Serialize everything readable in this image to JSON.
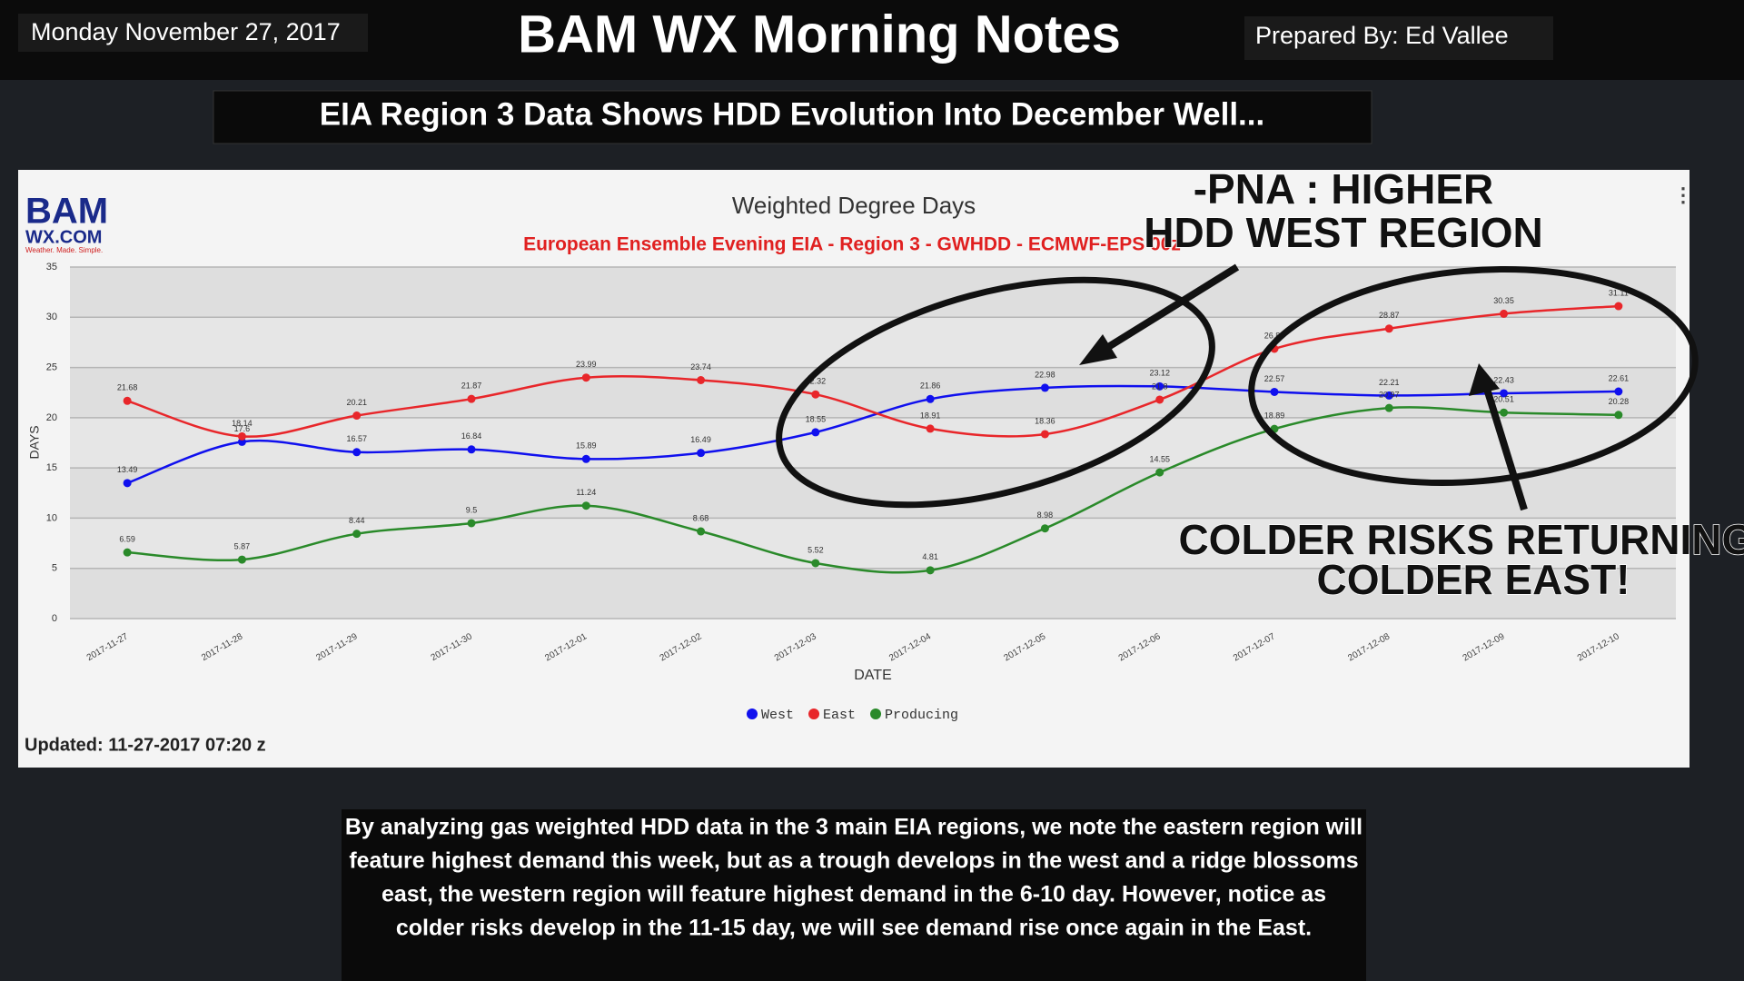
{
  "header": {
    "date": "Monday November 27, 2017",
    "title": "BAM WX Morning Notes",
    "author": "Prepared By: Ed Vallee"
  },
  "headline": "EIA Region 3 Data Shows HDD Evolution Into December Well...",
  "logo": {
    "brand": "BAM",
    "site": "WX.COM",
    "tagline": "Weather. Made. Simple."
  },
  "updated": "Updated: 11-27-2017 07:20 z",
  "body": [
    "By analyzing gas weighted HDD data in the 3 main EIA regions, we note the eastern region will",
    "feature highest demand this week, but as  a trough develops in the west and a ridge blossoms",
    "east, the western region will feature highest demand in the 6-10 day. However, notice as",
    "colder risks develop in the 11-15 day, we will see demand rise once again in the East."
  ],
  "chart_data": {
    "type": "line",
    "title": "Weighted Degree Days",
    "subtitle": "European Ensemble Evening EIA - Region 3 - GWHDD - ECMWF-EPS 00z",
    "x_label": "DATE",
    "y_label": "DAYS",
    "categories": [
      "2017-11-27",
      "2017-11-28",
      "2017-11-29",
      "2017-11-30",
      "2017-12-01",
      "2017-12-02",
      "2017-12-03",
      "2017-12-04",
      "2017-12-05",
      "2017-12-06",
      "2017-12-07",
      "2017-12-08",
      "2017-12-09",
      "2017-12-10"
    ],
    "series": [
      {
        "name": "West",
        "color": "#1010ee",
        "values": [
          13.49,
          17.6,
          16.57,
          16.84,
          15.89,
          16.49,
          18.55,
          21.86,
          22.98,
          23.12,
          22.57,
          22.21,
          22.43,
          22.61
        ]
      },
      {
        "name": "East",
        "color": "#e8262a",
        "values": [
          21.68,
          18.14,
          20.21,
          21.87,
          23.99,
          23.74,
          22.32,
          18.91,
          18.36,
          21.8,
          26.86,
          28.87,
          30.35,
          31.11
        ]
      },
      {
        "name": "Producing",
        "color": "#2a8a2a",
        "values": [
          6.59,
          5.87,
          8.44,
          9.5,
          11.24,
          8.68,
          5.52,
          4.81,
          8.98,
          14.55,
          18.89,
          20.97,
          20.51,
          20.28
        ]
      }
    ],
    "ylim": [
      0,
      35
    ],
    "yticks": [
      0,
      5,
      10,
      15,
      20,
      25,
      30,
      35
    ],
    "grid": true,
    "annotations": [
      "-PNA : HIGHER",
      "HDD WEST REGION",
      "COLDER RISKS RETURNING:",
      "COLDER EAST!"
    ]
  }
}
